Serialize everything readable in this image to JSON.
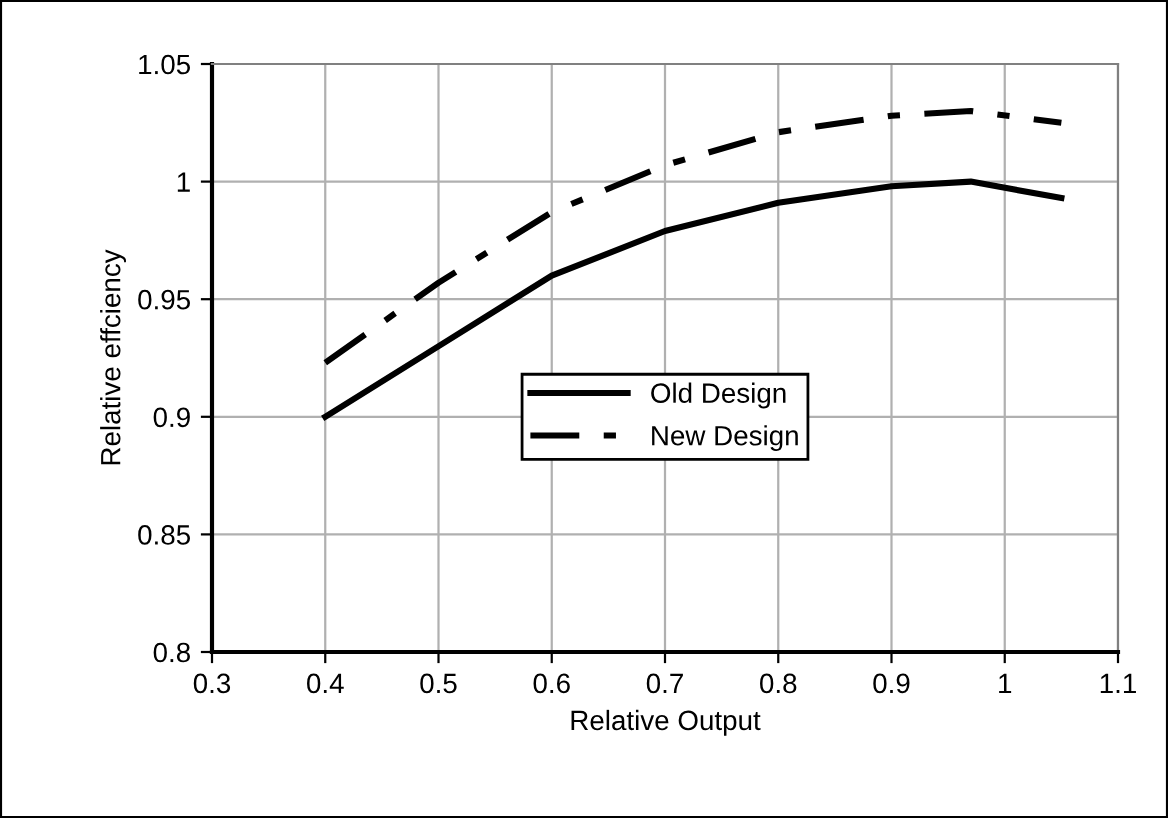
{
  "chart_data": {
    "type": "line",
    "xlabel": "Relative Output",
    "ylabel": "Relative effciency",
    "xlim": [
      0.3,
      1.1
    ],
    "xticks": [
      0.3,
      0.4,
      0.5,
      0.6,
      0.7,
      0.8,
      0.9,
      1,
      1.1
    ],
    "ylim": [
      0.8,
      1.05
    ],
    "yticks": [
      0.8,
      0.85,
      0.9,
      0.95,
      1,
      1.05
    ],
    "grid": true,
    "legend": "center",
    "marker": "none",
    "series": [
      {
        "name": "Old Design",
        "color": "#000000",
        "line_style": "solid",
        "x": [
          0.4,
          0.5,
          0.6,
          0.7,
          0.8,
          0.9,
          0.97,
          1.05
        ],
        "values": [
          0.9,
          0.93,
          0.96,
          0.979,
          0.991,
          0.998,
          1.0,
          0.993
        ]
      },
      {
        "name": "New Design",
        "color": "#000000",
        "line_style": "dashdot",
        "x": [
          0.4,
          0.5,
          0.6,
          0.7,
          0.8,
          0.9,
          0.97,
          1.05
        ],
        "values": [
          0.923,
          0.957,
          0.987,
          1.007,
          1.021,
          1.028,
          1.03,
          1.025
        ]
      }
    ]
  }
}
